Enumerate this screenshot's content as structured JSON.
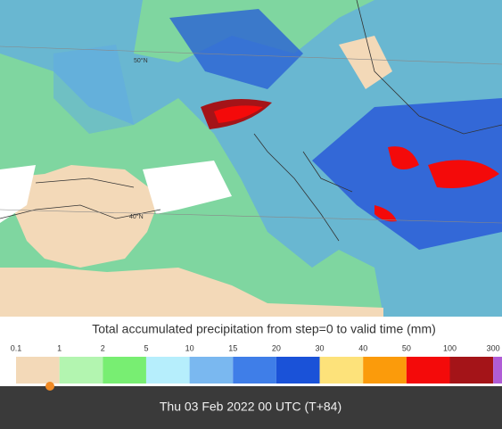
{
  "map": {
    "labels": [
      "50°N",
      "40°N"
    ]
  },
  "legend": {
    "title": "Total accumulated precipitation from step=0 to valid time (mm)",
    "thresholds": [
      0.1,
      1,
      2,
      5,
      10,
      15,
      20,
      30,
      40,
      50,
      100,
      300
    ],
    "colors": [
      "#f3d9b8",
      "#b3f5b0",
      "#78ee72",
      "#b6eefc",
      "#7ab8f0",
      "#3f7ee8",
      "#1a52d8",
      "#fde27a",
      "#fb9b0b",
      "#f40a0a",
      "#a41418",
      "#b05cd6"
    ]
  },
  "footer": {
    "valid_time": "Thu 03 Feb 2022 00 UTC (T+84)"
  }
}
